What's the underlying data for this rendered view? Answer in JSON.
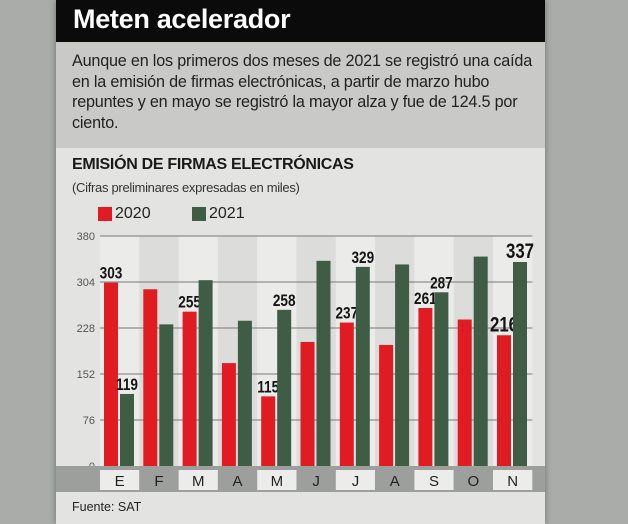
{
  "header": {
    "title": "Meten acelerador",
    "intro": "Aunque en los primeros dos meses de 2021 se registró una caída en la emisión de firmas electrónicas, a partir de marzo hubo repuntes y en mayo se registró la mayor alza y fue de 124.5 por ciento."
  },
  "chart_data": {
    "type": "bar",
    "title": "EMISIÓN DE FIRMAS ELECTRÓNICAS",
    "subtitle": "(Cifras preliminares expresadas en miles)",
    "categories": [
      "E",
      "F",
      "M",
      "A",
      "M",
      "J",
      "J",
      "A",
      "S",
      "O",
      "N"
    ],
    "series": [
      {
        "name": "2020",
        "color": "#e01b22",
        "values": [
          303,
          292,
          255,
          170,
          115,
          205,
          237,
          200,
          261,
          242,
          216
        ],
        "labels": [
          "303",
          "",
          "255",
          "",
          "115",
          "",
          "237",
          "",
          "261",
          "",
          "216"
        ]
      },
      {
        "name": "2021",
        "color": "#3f5c45",
        "values": [
          119,
          234,
          307,
          240,
          258,
          339,
          329,
          333,
          287,
          346,
          337
        ],
        "labels": [
          "119",
          "",
          "",
          "",
          "258",
          "",
          "329",
          "",
          "287",
          "",
          "337"
        ]
      }
    ],
    "yticks": [
      0,
      76,
      152,
      228,
      304,
      380
    ],
    "ylim": [
      0,
      380
    ],
    "grid": true,
    "legend": "top-left"
  },
  "footer": {
    "source": "Fuente: SAT"
  }
}
